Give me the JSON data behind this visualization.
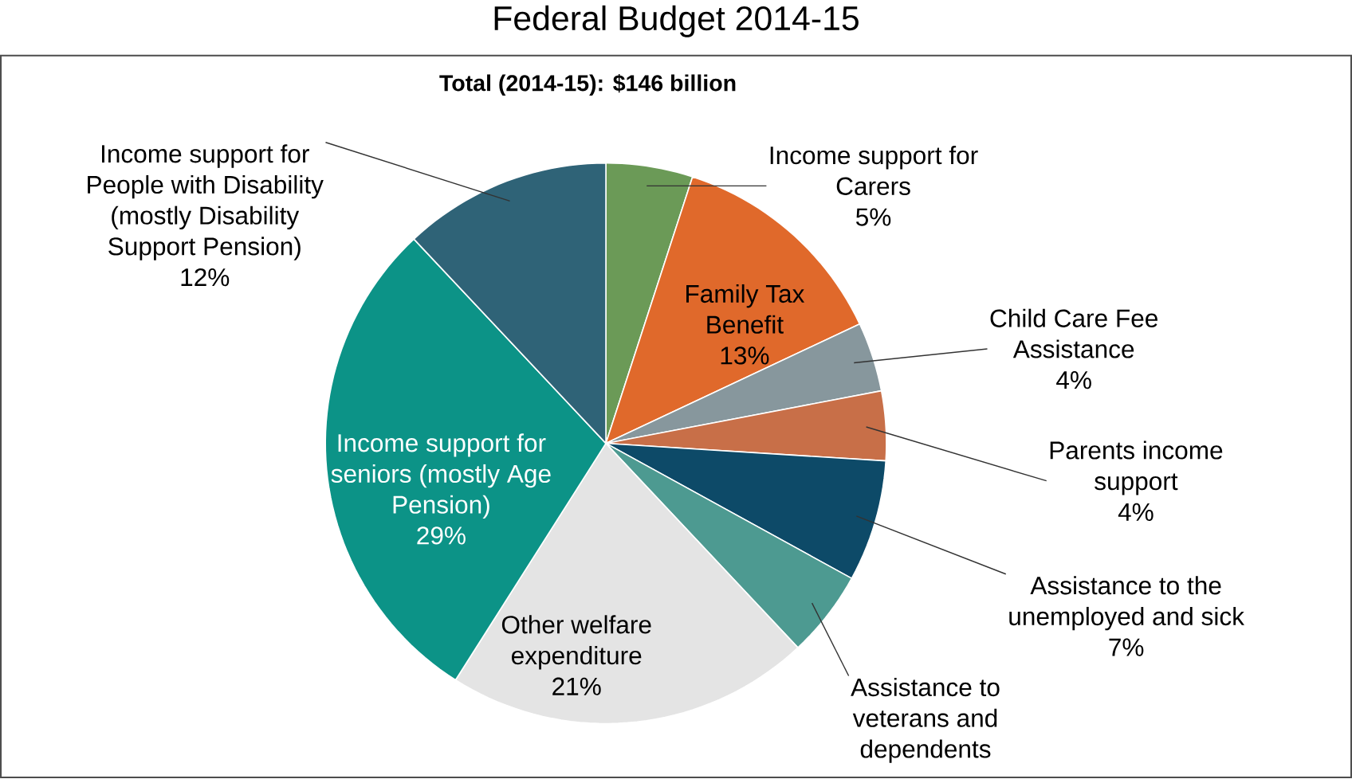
{
  "chart_data": {
    "type": "pie",
    "title": "Federal Budget 2014-15",
    "subtitle": "Total (2014-15): $146 billion",
    "categories": [
      "Income support for Carers",
      "Family Tax Benefit",
      "Child Care Fee Assistance",
      "Parents income support",
      "Assistance to the unemployed and sick",
      "Assistance to veterans and dependents",
      "Other welfare expenditure",
      "Income support for seniors (mostly Age Pension)",
      "Income support for People with Disability (mostly Disability Support Pension)"
    ],
    "values": [
      5,
      13,
      4,
      4,
      7,
      5,
      21,
      29,
      12
    ],
    "value_labels": [
      "5%",
      "13%",
      "4%",
      "4%",
      "7%",
      null,
      "21%",
      "29%",
      "12%"
    ],
    "colors": [
      "#6b9a57",
      "#e0692b",
      "#87979d",
      "#c86f48",
      "#0d4a68",
      "#4d9a91",
      "#e4e4e4",
      "#0c9387",
      "#2f6377"
    ]
  }
}
